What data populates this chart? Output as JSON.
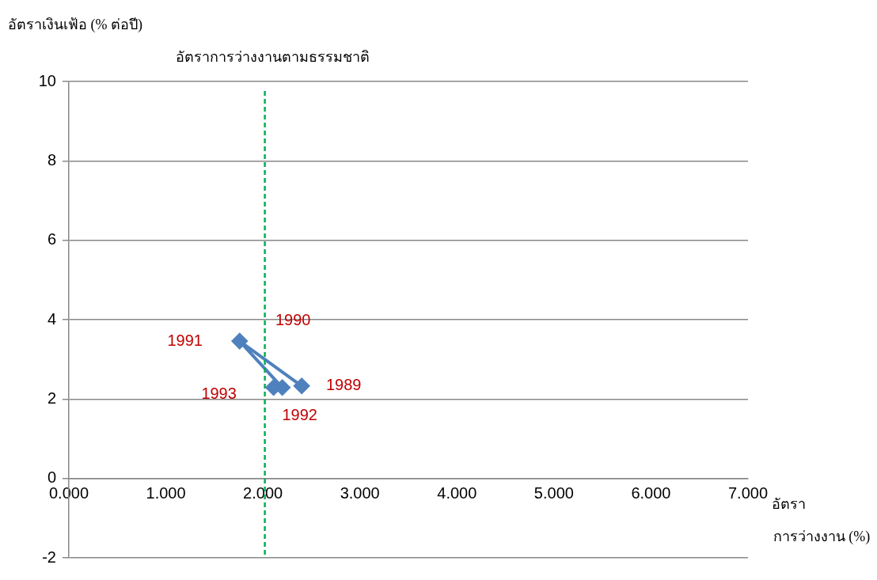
{
  "chart_data": {
    "type": "line",
    "ylabel": "อัตราเงินเฟ้อ (% ต่อปี)",
    "xlabel": "อัตรา การว่างงาน (%)",
    "x": [
      2.4,
      1.78,
      1.76,
      2.2,
      2.11
    ],
    "series": [
      {
        "color": "#4f81bd",
        "values": [
          2.33,
          null,
          3.46,
          2.29,
          2.29
        ]
      }
    ],
    "xlim": [
      0,
      7
    ],
    "xticks": [
      {
        "value": 0,
        "label": "0.000"
      },
      {
        "value": 1,
        "label": "1.000"
      },
      {
        "value": 2,
        "label": "2.000"
      },
      {
        "value": 3,
        "label": "3.000"
      },
      {
        "value": 4,
        "label": "4.000"
      },
      {
        "value": 5,
        "label": "5.000"
      },
      {
        "value": 6,
        "label": "6.000"
      },
      {
        "value": 7,
        "label": "7.000"
      }
    ],
    "ylim": [
      -2,
      10
    ],
    "yticks": [
      -2,
      0,
      2,
      4,
      6,
      8,
      10
    ],
    "grid": "y",
    "legend": false,
    "marker": "diamond",
    "line_style": "solid",
    "ref_lines": [
      {
        "axis": "x",
        "value": 2.02,
        "label": "อัตราการว่างงานตามธรรมชาติ",
        "color": "#00b050",
        "line_style": "dashed"
      }
    ],
    "annotations": [
      {
        "text": "1989",
        "x": 2.4,
        "y": 2.33
      },
      {
        "text": "1990",
        "x": 1.78,
        "y": 3.43
      },
      {
        "text": "1991",
        "x": 1.76,
        "y": 3.46
      },
      {
        "text": "1992",
        "x": 2.2,
        "y": 2.29
      },
      {
        "text": "1993",
        "x": 2.11,
        "y": 2.29
      }
    ]
  }
}
